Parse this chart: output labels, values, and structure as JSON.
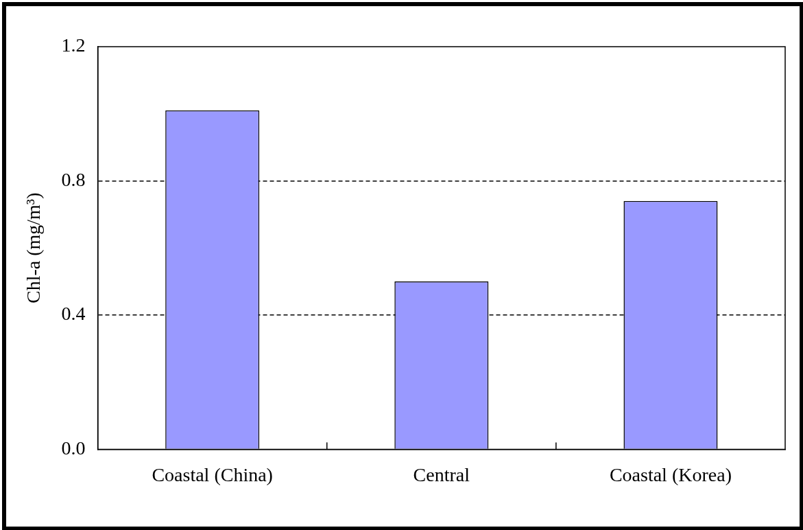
{
  "chart_data": {
    "type": "bar",
    "ylabel": "Chl-a (mg/m³)",
    "categories": [
      "Coastal (China)",
      "Central",
      "Coastal (Korea)"
    ],
    "values": [
      1.01,
      0.5,
      0.74
    ],
    "color": "#9999ff",
    "ylim": [
      0,
      1.2
    ],
    "yticks": [
      {
        "value": 0,
        "label": "0.0"
      },
      {
        "value": 0.4,
        "label": "0.4"
      },
      {
        "value": 0.8,
        "label": "0.8"
      },
      {
        "value": 1.2,
        "label": "1.2"
      }
    ],
    "grid": "y",
    "line_style": "dashed"
  }
}
